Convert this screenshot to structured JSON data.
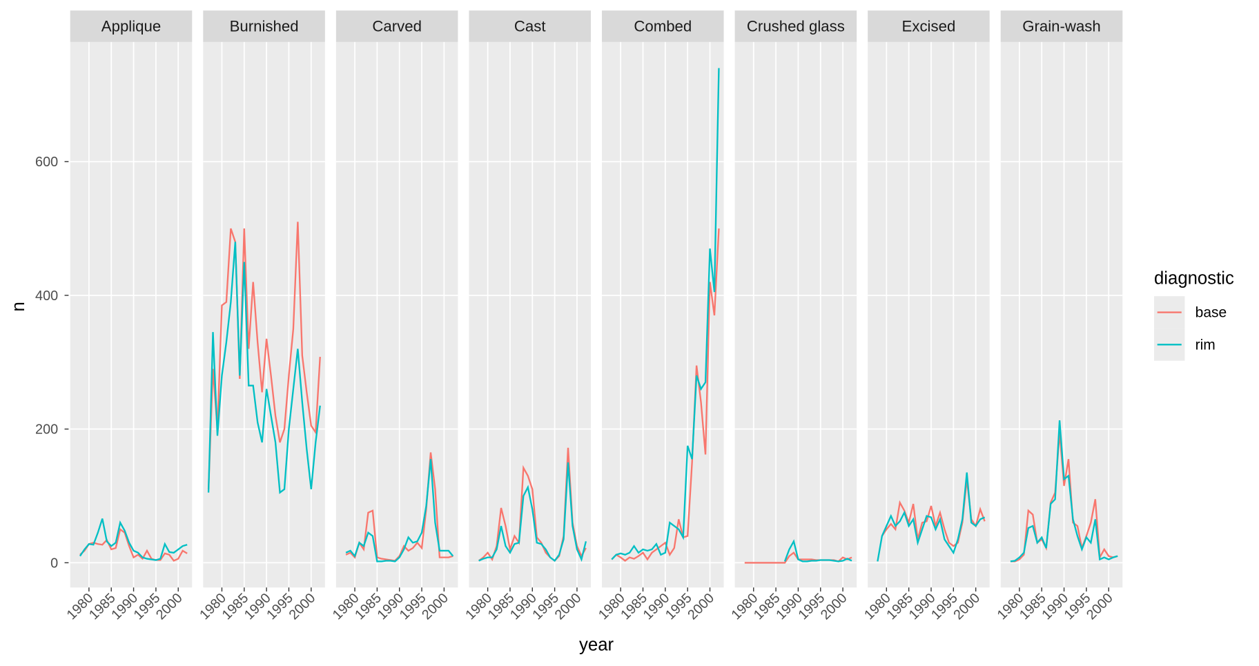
{
  "chart_data": {
    "type": "line",
    "x_label": "year",
    "y_label": "n",
    "legend_title": "diagnostic",
    "series": [
      {
        "name": "base",
        "color": "#F8766D"
      },
      {
        "name": "rim",
        "color": "#00BFC4"
      }
    ],
    "xlim": [
      1975.8,
      2003.1
    ],
    "xticks": [
      1980,
      1985,
      1990,
      1995,
      2000
    ],
    "ylim": [
      -37,
      779
    ],
    "yticks": [
      0,
      200,
      400,
      600
    ],
    "grid": true,
    "facets": [
      {
        "title": "Applique",
        "x": [
          1978,
          1979,
          1980,
          1981,
          1982,
          1983,
          1984,
          1985,
          1986,
          1987,
          1988,
          1989,
          1990,
          1991,
          1992,
          1993,
          1994,
          1995,
          1996,
          1997,
          1998,
          1999,
          2000,
          2001,
          2002
        ],
        "values": [
          [
            12,
            18,
            28,
            30,
            28,
            27,
            34,
            20,
            22,
            50,
            45,
            25,
            8,
            12,
            6,
            18,
            6,
            4,
            4,
            14,
            12,
            3,
            6,
            18,
            14
          ],
          [
            10,
            20,
            28,
            27,
            45,
            66,
            32,
            25,
            30,
            60,
            48,
            30,
            18,
            15,
            8,
            6,
            5,
            4,
            6,
            28,
            16,
            15,
            20,
            25,
            27
          ]
        ]
      },
      {
        "title": "Burnished",
        "x": [
          1977,
          1978,
          1979,
          1980,
          1981,
          1982,
          1983,
          1984,
          1985,
          1986,
          1987,
          1988,
          1989,
          1990,
          1991,
          1992,
          1993,
          1994,
          1995,
          1996,
          1997,
          1998,
          1999,
          2000,
          2001,
          2002
        ],
        "values": [
          [
            110,
            290,
            200,
            385,
            390,
            500,
            480,
            275,
            500,
            320,
            420,
            330,
            255,
            335,
            280,
            220,
            180,
            200,
            280,
            350,
            510,
            310,
            255,
            205,
            195,
            308
          ],
          [
            105,
            345,
            190,
            280,
            330,
            390,
            480,
            280,
            450,
            265,
            265,
            210,
            180,
            260,
            220,
            180,
            105,
            110,
            200,
            260,
            320,
            240,
            170,
            110,
            180,
            235
          ]
        ]
      },
      {
        "title": "Carved",
        "x": [
          1978,
          1979,
          1980,
          1981,
          1982,
          1983,
          1984,
          1985,
          1986,
          1987,
          1988,
          1989,
          1990,
          1991,
          1992,
          1993,
          1994,
          1995,
          1996,
          1997,
          1998,
          1999,
          2000,
          2001,
          2002
        ],
        "values": [
          [
            12,
            15,
            8,
            30,
            20,
            75,
            78,
            8,
            6,
            5,
            4,
            3,
            10,
            25,
            18,
            22,
            30,
            22,
            80,
            165,
            110,
            8,
            8,
            8,
            10
          ],
          [
            15,
            18,
            10,
            30,
            25,
            45,
            40,
            2,
            2,
            3,
            3,
            2,
            8,
            20,
            38,
            30,
            32,
            45,
            85,
            155,
            60,
            18,
            18,
            18,
            10
          ]
        ]
      },
      {
        "title": "Cast",
        "x": [
          1978,
          1979,
          1980,
          1981,
          1982,
          1983,
          1984,
          1985,
          1986,
          1987,
          1988,
          1989,
          1990,
          1991,
          1992,
          1993,
          1994,
          1995,
          1996,
          1997,
          1998,
          1999,
          2000,
          2001,
          2002
        ],
        "values": [
          [
            3,
            8,
            15,
            5,
            25,
            82,
            55,
            20,
            40,
            30,
            142,
            130,
            110,
            38,
            30,
            15,
            8,
            3,
            10,
            40,
            172,
            60,
            25,
            10,
            22
          ],
          [
            3,
            6,
            8,
            8,
            20,
            55,
            25,
            15,
            28,
            30,
            100,
            113,
            80,
            30,
            28,
            20,
            8,
            3,
            12,
            35,
            150,
            55,
            20,
            5,
            32
          ]
        ]
      },
      {
        "title": "Combed",
        "x": [
          1978,
          1979,
          1980,
          1981,
          1982,
          1983,
          1984,
          1985,
          1986,
          1987,
          1988,
          1989,
          1990,
          1991,
          1992,
          1993,
          1994,
          1995,
          1996,
          1997,
          1998,
          1999,
          2000,
          2001,
          2002
        ],
        "values": [
          [
            5,
            12,
            8,
            3,
            8,
            6,
            10,
            15,
            5,
            15,
            20,
            25,
            30,
            12,
            22,
            65,
            38,
            40,
            150,
            295,
            240,
            162,
            420,
            370,
            500
          ],
          [
            5,
            12,
            14,
            12,
            15,
            25,
            15,
            20,
            18,
            20,
            28,
            12,
            15,
            60,
            55,
            50,
            38,
            175,
            155,
            280,
            260,
            270,
            470,
            405,
            740
          ]
        ]
      },
      {
        "title": "Crushed glass",
        "x": [
          1978,
          1979,
          1980,
          1981,
          1982,
          1983,
          1984,
          1985,
          1986,
          1987,
          1988,
          1989,
          1990,
          1991,
          1992,
          1993,
          1994,
          1995,
          1996,
          1997,
          1998,
          1999,
          2000,
          2001,
          2002
        ],
        "values": [
          [
            0,
            0,
            0,
            0,
            0,
            0,
            0,
            0,
            0,
            0,
            10,
            15,
            5,
            5,
            5,
            5,
            4,
            4,
            4,
            4,
            4,
            2,
            8,
            5,
            8
          ],
          [
            null,
            null,
            null,
            null,
            null,
            null,
            null,
            null,
            null,
            2,
            20,
            32,
            5,
            2,
            2,
            3,
            3,
            4,
            4,
            4,
            3,
            2,
            3,
            6,
            3
          ]
        ]
      },
      {
        "title": "Excised",
        "x": [
          1978,
          1979,
          1980,
          1981,
          1982,
          1983,
          1984,
          1985,
          1986,
          1987,
          1988,
          1989,
          1990,
          1991,
          1992,
          1993,
          1994,
          1995,
          1996,
          1997,
          1998,
          1999,
          2000,
          2001,
          2002
        ],
        "values": [
          [
            null,
            40,
            50,
            58,
            50,
            90,
            78,
            60,
            88,
            35,
            60,
            62,
            85,
            55,
            75,
            50,
            30,
            25,
            30,
            60,
            125,
            65,
            55,
            80,
            62
          ],
          [
            2,
            40,
            55,
            70,
            55,
            62,
            75,
            55,
            65,
            30,
            50,
            70,
            68,
            50,
            65,
            35,
            25,
            15,
            35,
            65,
            135,
            60,
            55,
            65,
            68
          ]
        ]
      },
      {
        "title": "Grain-wash",
        "x": [
          1978,
          1979,
          1980,
          1981,
          1982,
          1983,
          1984,
          1985,
          1986,
          1987,
          1988,
          1989,
          1990,
          1991,
          1992,
          1993,
          1994,
          1995,
          1996,
          1997,
          1998,
          1999,
          2000,
          2001,
          2002
        ],
        "values": [
          [
            2,
            2,
            5,
            12,
            78,
            72,
            30,
            35,
            22,
            90,
            105,
            195,
            115,
            155,
            60,
            55,
            22,
            40,
            60,
            95,
            8,
            20,
            10,
            8,
            10
          ],
          [
            2,
            3,
            8,
            15,
            52,
            55,
            30,
            38,
            22,
            88,
            95,
            213,
            125,
            130,
            65,
            40,
            20,
            38,
            30,
            65,
            5,
            8,
            5,
            8,
            10
          ]
        ]
      }
    ]
  }
}
